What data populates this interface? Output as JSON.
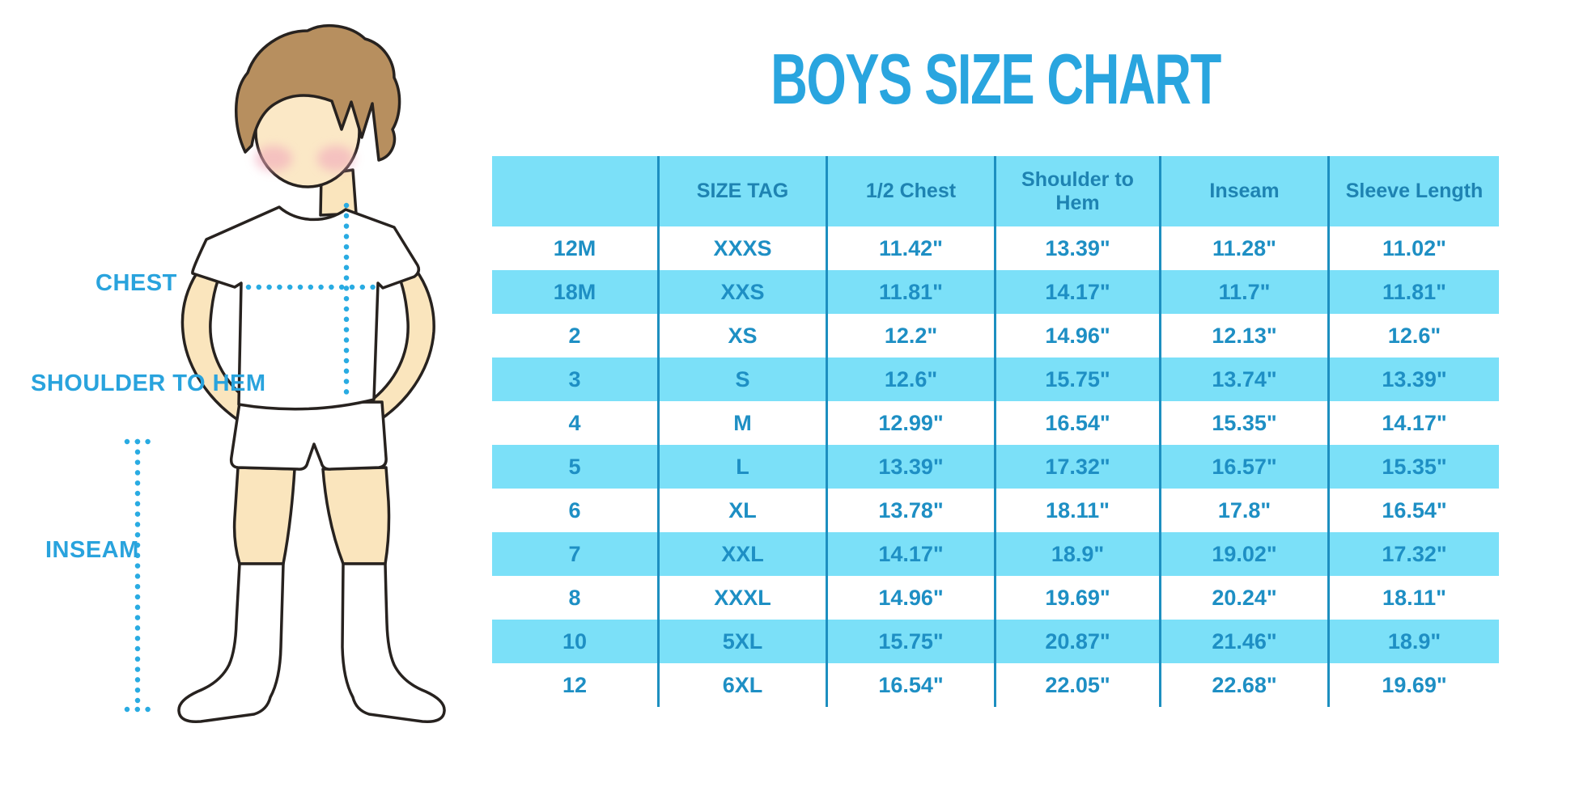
{
  "title": "BOYS SIZE CHART",
  "colors": {
    "title_blue": "#29A5DF",
    "label_blue": "#29A3DD",
    "dotted_line_blue": "#29ABE2",
    "table_body_text": "#1E8FC4",
    "table_header_text": "#1E83B2",
    "stripe_cyan": "#7BE0F8",
    "divider_blue": "#1D8FC0",
    "skin": "#FAE5BD",
    "hair_brown": "#B78F5F",
    "blush_pink": "#F1A9BB",
    "outline_dark": "#27221F"
  },
  "diagram": {
    "labels": {
      "chest": "CHEST",
      "shoulder_to_hem": "SHOULDER TO HEM",
      "inseam": "INSEAM"
    }
  },
  "chart_data": {
    "type": "table",
    "title": "BOYS SIZE CHART",
    "columns": [
      "",
      "SIZE TAG",
      "1/2 Chest",
      "Shoulder to Hem",
      "Inseam",
      "Sleeve Length"
    ],
    "rows": [
      [
        "12M",
        "XXXS",
        "11.42\"",
        "13.39\"",
        "11.28\"",
        "11.02\""
      ],
      [
        "18M",
        "XXS",
        "11.81\"",
        "14.17\"",
        "11.7\"",
        "11.81\""
      ],
      [
        "2",
        "XS",
        "12.2\"",
        "14.96\"",
        "12.13\"",
        "12.6\""
      ],
      [
        "3",
        "S",
        "12.6\"",
        "15.75\"",
        "13.74\"",
        "13.39\""
      ],
      [
        "4",
        "M",
        "12.99\"",
        "16.54\"",
        "15.35\"",
        "14.17\""
      ],
      [
        "5",
        "L",
        "13.39\"",
        "17.32\"",
        "16.57\"",
        "15.35\""
      ],
      [
        "6",
        "XL",
        "13.78\"",
        "18.11\"",
        "17.8\"",
        "16.54\""
      ],
      [
        "7",
        "XXL",
        "14.17\"",
        "18.9\"",
        "19.02\"",
        "17.32\""
      ],
      [
        "8",
        "XXXL",
        "14.96\"",
        "19.69\"",
        "20.24\"",
        "18.11\""
      ],
      [
        "10",
        "5XL",
        "15.75\"",
        "20.87\"",
        "21.46\"",
        "18.9\""
      ],
      [
        "12",
        "6XL",
        "16.54\"",
        "22.05\"",
        "22.68\"",
        "19.69\""
      ]
    ],
    "units": "inches",
    "layout_hints": {
      "row_striping": "alternate white / cyan starting white",
      "column_dividers": "vertical blue lines",
      "header_background": "cyan"
    }
  }
}
